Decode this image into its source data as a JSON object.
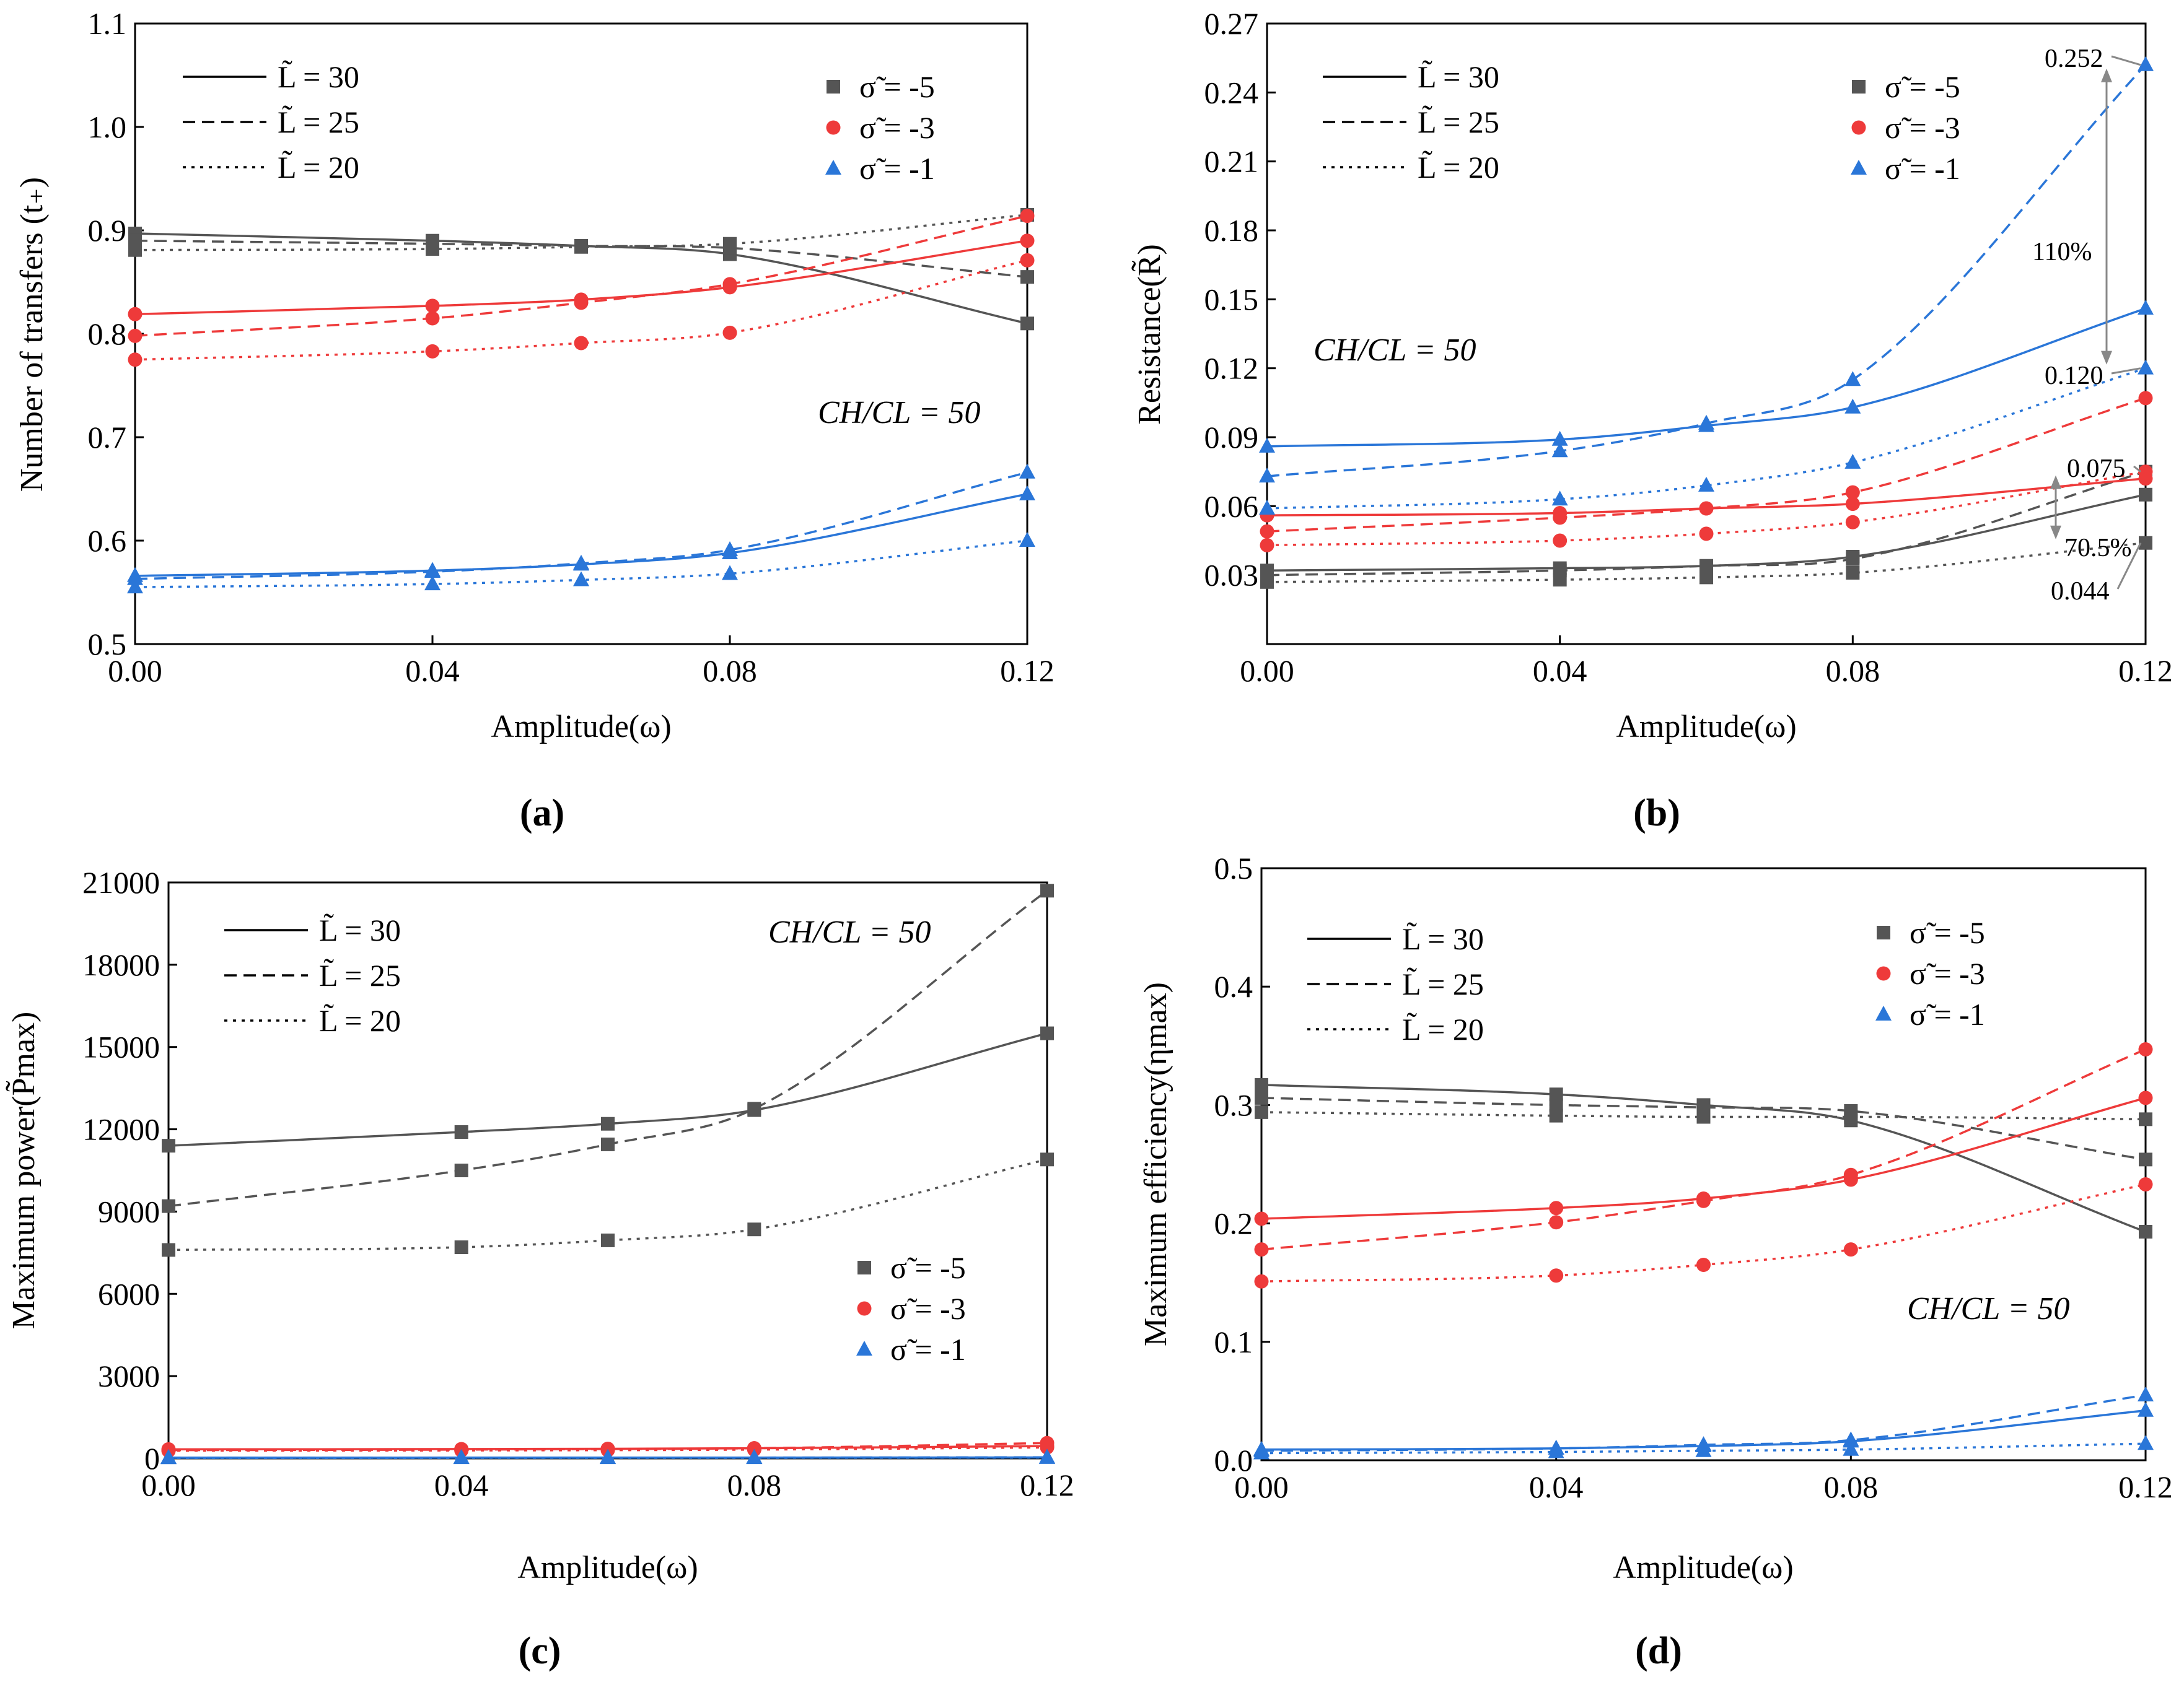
{
  "colors": {
    "s-5": "#555555",
    "s-3": "#ee3a3a",
    "s-1": "#2a76d8",
    "axis": "#000000",
    "arrow": "#888888"
  },
  "chart_data": [
    {
      "id": "a",
      "type": "line",
      "panel_label": "(a)",
      "xlabel": "Amplitude(ω)",
      "ylabel": "Number of transfers (t₊)",
      "xlim": [
        0,
        0.12
      ],
      "ylim": [
        0.5,
        1.1
      ],
      "xticks": [
        0,
        0.04,
        0.08,
        0.12
      ],
      "xtick_labels": [
        "0.00",
        "0.04",
        "0.08",
        "0.12"
      ],
      "yticks": [
        0.5,
        0.6,
        0.7,
        0.8,
        0.9,
        1.0,
        1.1
      ],
      "ytick_labels": [
        "0.5",
        "0.6",
        "0.7",
        "0.8",
        "0.9",
        "1.0",
        "1.1"
      ],
      "annotation": "CH/CL = 50",
      "legend_L": [
        "L̃ = 30",
        "L̃ = 25",
        "L̃ = 20"
      ],
      "legend_sigma": [
        "σ̃ = -5",
        "σ̃ = -3",
        "σ̃ = -1"
      ],
      "x": [
        0,
        0.04,
        0.06,
        0.08,
        0.12
      ],
      "series": [
        {
          "sigma": -5,
          "L": 30,
          "values": [
            0.897,
            0.89,
            0.885,
            0.877,
            0.81
          ]
        },
        {
          "sigma": -5,
          "L": 25,
          "values": [
            0.89,
            0.887,
            0.885,
            0.883,
            0.855
          ]
        },
        {
          "sigma": -5,
          "L": 20,
          "values": [
            0.881,
            0.882,
            0.884,
            0.887,
            0.915
          ]
        },
        {
          "sigma": -3,
          "L": 30,
          "values": [
            0.819,
            0.827,
            0.833,
            0.845,
            0.89
          ]
        },
        {
          "sigma": -3,
          "L": 25,
          "values": [
            0.798,
            0.815,
            0.83,
            0.848,
            0.914
          ]
        },
        {
          "sigma": -3,
          "L": 20,
          "values": [
            0.775,
            0.783,
            0.791,
            0.801,
            0.871
          ]
        },
        {
          "sigma": -1,
          "L": 30,
          "values": [
            0.566,
            0.571,
            0.577,
            0.588,
            0.645
          ]
        },
        {
          "sigma": -1,
          "L": 25,
          "values": [
            0.563,
            0.57,
            0.578,
            0.591,
            0.666
          ]
        },
        {
          "sigma": -1,
          "L": 20,
          "values": [
            0.555,
            0.558,
            0.562,
            0.568,
            0.6
          ]
        }
      ]
    },
    {
      "id": "b",
      "type": "line",
      "panel_label": "(b)",
      "xlabel": "Amplitude(ω)",
      "ylabel": "Resistance(R̃)",
      "xlim": [
        0,
        0.12
      ],
      "ylim": [
        0,
        0.27
      ],
      "xticks": [
        0,
        0.04,
        0.08,
        0.12
      ],
      "xtick_labels": [
        "0.00",
        "0.04",
        "0.08",
        "0.12"
      ],
      "yticks": [
        0.03,
        0.06,
        0.09,
        0.12,
        0.15,
        0.18,
        0.21,
        0.24,
        0.27
      ],
      "ytick_labels": [
        "0.03",
        "0.06",
        "0.09",
        "0.12",
        "0.15",
        "0.18",
        "0.21",
        "0.24",
        "0.27"
      ],
      "annotation": "CH/CL = 50",
      "legend_L": [
        "L̃ = 30",
        "L̃ = 25",
        "L̃ = 20"
      ],
      "legend_sigma": [
        "σ̃ = -5",
        "σ̃ = -3",
        "σ̃ = -1"
      ],
      "value_labels": [
        "0.252",
        "0.120",
        "0.075",
        "0.044"
      ],
      "percent_labels": [
        "110%",
        "70.5%"
      ],
      "x": [
        0,
        0.04,
        0.06,
        0.08,
        0.12
      ],
      "series": [
        {
          "sigma": -5,
          "L": 30,
          "values": [
            0.032,
            0.033,
            0.034,
            0.038,
            0.065
          ]
        },
        {
          "sigma": -5,
          "L": 25,
          "values": [
            0.03,
            0.032,
            0.034,
            0.037,
            0.075
          ]
        },
        {
          "sigma": -5,
          "L": 20,
          "values": [
            0.027,
            0.028,
            0.029,
            0.031,
            0.044
          ]
        },
        {
          "sigma": -3,
          "L": 30,
          "values": [
            0.056,
            0.057,
            0.059,
            0.061,
            0.072
          ]
        },
        {
          "sigma": -3,
          "L": 25,
          "values": [
            0.049,
            0.055,
            0.059,
            0.066,
            0.107
          ]
        },
        {
          "sigma": -3,
          "L": 20,
          "values": [
            0.043,
            0.045,
            0.048,
            0.053,
            0.075
          ]
        },
        {
          "sigma": -1,
          "L": 30,
          "values": [
            0.086,
            0.089,
            0.095,
            0.103,
            0.146
          ]
        },
        {
          "sigma": -1,
          "L": 25,
          "values": [
            0.073,
            0.084,
            0.096,
            0.115,
            0.252
          ]
        },
        {
          "sigma": -1,
          "L": 20,
          "values": [
            0.059,
            0.063,
            0.069,
            0.079,
            0.12
          ]
        }
      ]
    },
    {
      "id": "c",
      "type": "line",
      "panel_label": "(c)",
      "xlabel": "Amplitude(ω)",
      "ylabel": "Maximum power(P̃max)",
      "xlim": [
        0,
        0.12
      ],
      "ylim": [
        0,
        21000
      ],
      "xticks": [
        0,
        0.04,
        0.08,
        0.12
      ],
      "xtick_labels": [
        "0.00",
        "0.04",
        "0.08",
        "0.12"
      ],
      "yticks": [
        0,
        3000,
        6000,
        9000,
        12000,
        15000,
        18000,
        21000
      ],
      "ytick_labels": [
        "0",
        "3000",
        "6000",
        "9000",
        "12000",
        "15000",
        "18000",
        "21000"
      ],
      "annotation": "CH/CL = 50",
      "legend_L": [
        "L̃ = 30",
        "L̃ = 25",
        "L̃ = 20"
      ],
      "legend_sigma": [
        "σ̃ = -5",
        "σ̃ = -3",
        "σ̃ = -1"
      ],
      "x": [
        0,
        0.04,
        0.06,
        0.08,
        0.12
      ],
      "series": [
        {
          "sigma": -5,
          "L": 30,
          "values": [
            11400,
            11900,
            12200,
            12700,
            15500
          ]
        },
        {
          "sigma": -5,
          "L": 25,
          "values": [
            9200,
            10500,
            11450,
            12750,
            20700
          ]
        },
        {
          "sigma": -5,
          "L": 20,
          "values": [
            7600,
            7700,
            7950,
            8350,
            10900
          ]
        },
        {
          "sigma": -3,
          "L": 30,
          "values": [
            330,
            340,
            350,
            370,
            450
          ]
        },
        {
          "sigma": -3,
          "L": 25,
          "values": [
            300,
            320,
            340,
            370,
            560
          ]
        },
        {
          "sigma": -3,
          "L": 20,
          "values": [
            280,
            290,
            300,
            320,
            400
          ]
        },
        {
          "sigma": -1,
          "L": 30,
          "values": [
            25,
            26,
            27,
            28,
            33
          ]
        },
        {
          "sigma": -1,
          "L": 25,
          "values": [
            22,
            24,
            26,
            29,
            40
          ]
        },
        {
          "sigma": -1,
          "L": 20,
          "values": [
            18,
            19,
            20,
            21,
            26
          ]
        }
      ]
    },
    {
      "id": "d",
      "type": "line",
      "panel_label": "(d)",
      "xlabel": "Amplitude(ω)",
      "ylabel": "Maximum efficiency(ηmax)",
      "xlim": [
        0,
        0.12
      ],
      "ylim": [
        0,
        0.5
      ],
      "xticks": [
        0,
        0.04,
        0.08,
        0.12
      ],
      "xtick_labels": [
        "0.00",
        "0.04",
        "0.08",
        "0.12"
      ],
      "yticks": [
        0,
        0.1,
        0.2,
        0.3,
        0.4,
        0.5
      ],
      "ytick_labels": [
        "0.0",
        "0.1",
        "0.2",
        "0.3",
        "0.4",
        "0.5"
      ],
      "annotation": "CH/CL = 50",
      "legend_L": [
        "L̃ = 30",
        "L̃ = 25",
        "L̃ = 20"
      ],
      "legend_sigma": [
        "σ̃ = -5",
        "σ̃ = -3",
        "σ̃ = -1"
      ],
      "x": [
        0,
        0.04,
        0.06,
        0.08,
        0.12
      ],
      "series": [
        {
          "sigma": -5,
          "L": 30,
          "values": [
            0.317,
            0.309,
            0.3,
            0.287,
            0.193
          ]
        },
        {
          "sigma": -5,
          "L": 25,
          "values": [
            0.306,
            0.3,
            0.298,
            0.295,
            0.254
          ]
        },
        {
          "sigma": -5,
          "L": 20,
          "values": [
            0.294,
            0.291,
            0.29,
            0.29,
            0.288
          ]
        },
        {
          "sigma": -3,
          "L": 30,
          "values": [
            0.204,
            0.213,
            0.221,
            0.237,
            0.306
          ]
        },
        {
          "sigma": -3,
          "L": 25,
          "values": [
            0.178,
            0.201,
            0.219,
            0.241,
            0.347
          ]
        },
        {
          "sigma": -3,
          "L": 20,
          "values": [
            0.151,
            0.156,
            0.165,
            0.178,
            0.233
          ]
        },
        {
          "sigma": -1,
          "L": 30,
          "values": [
            0.009,
            0.01,
            0.012,
            0.016,
            0.042
          ]
        },
        {
          "sigma": -1,
          "L": 25,
          "values": [
            0.008,
            0.01,
            0.013,
            0.017,
            0.055
          ]
        },
        {
          "sigma": -1,
          "L": 20,
          "values": [
            0.006,
            0.007,
            0.008,
            0.009,
            0.014
          ]
        }
      ]
    }
  ]
}
